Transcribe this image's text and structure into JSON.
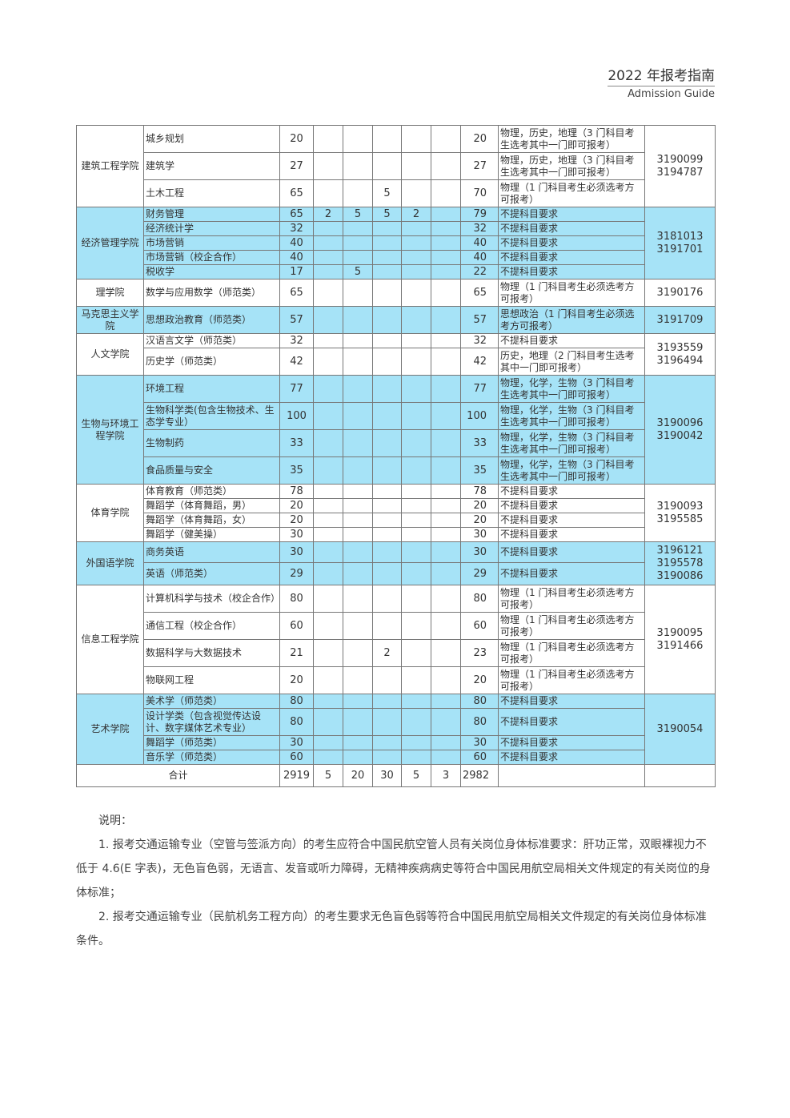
{
  "header": {
    "title": "2022 年报考指南",
    "subtitle": "Admission Guide"
  },
  "colors": {
    "shade": "#a6e3f7",
    "border": "#777777"
  },
  "groups": [
    {
      "college": "建筑工程学院",
      "phone": [
        "3190099",
        "3194787"
      ],
      "shaded": false,
      "rows": [
        {
          "major": "城乡规划",
          "nums": [
            "20",
            "",
            "",
            "",
            "",
            ""
          ],
          "total": "20",
          "req": "物理，历史，地理（3 门科目考生选考其中一门即可报考）"
        },
        {
          "major": "建筑学",
          "nums": [
            "27",
            "",
            "",
            "",
            "",
            ""
          ],
          "total": "27",
          "req": "物理，历史，地理（3 门科目考生选考其中一门即可报考）"
        },
        {
          "major": "土木工程",
          "nums": [
            "65",
            "",
            "",
            "5",
            "",
            ""
          ],
          "total": "70",
          "req": "物理（1 门科目考生必须选考方可报考）"
        }
      ]
    },
    {
      "college": "经济管理学院",
      "phone": [
        "3181013",
        "3191701"
      ],
      "shaded": true,
      "rows": [
        {
          "major": "财务管理",
          "nums": [
            "65",
            "2",
            "5",
            "5",
            "2",
            ""
          ],
          "total": "79",
          "req": "不提科目要求"
        },
        {
          "major": "经济统计学",
          "nums": [
            "32",
            "",
            "",
            "",
            "",
            ""
          ],
          "total": "32",
          "req": "不提科目要求"
        },
        {
          "major": "市场营销",
          "nums": [
            "40",
            "",
            "",
            "",
            "",
            ""
          ],
          "total": "40",
          "req": "不提科目要求"
        },
        {
          "major": "市场营销（校企合作）",
          "nums": [
            "40",
            "",
            "",
            "",
            "",
            ""
          ],
          "total": "40",
          "req": "不提科目要求"
        },
        {
          "major": "税收学",
          "nums": [
            "17",
            "",
            "5",
            "",
            "",
            ""
          ],
          "total": "22",
          "req": "不提科目要求"
        }
      ]
    },
    {
      "college": "理学院",
      "phone": [
        "3190176"
      ],
      "shaded": false,
      "rows": [
        {
          "major": "数学与应用数学（师范类）",
          "nums": [
            "65",
            "",
            "",
            "",
            "",
            ""
          ],
          "total": "65",
          "req": "物理（1 门科目考生必须选考方可报考）"
        }
      ]
    },
    {
      "college": "马克思主义学院",
      "phone": [
        "3191709"
      ],
      "shaded": true,
      "rows": [
        {
          "major": "思想政治教育（师范类）",
          "nums": [
            "57",
            "",
            "",
            "",
            "",
            ""
          ],
          "total": "57",
          "req": "思想政治（1 门科目考生必须选考方可报考）"
        }
      ]
    },
    {
      "college": "人文学院",
      "phone": [
        "3193559",
        "3196494"
      ],
      "shaded": false,
      "rows": [
        {
          "major": "汉语言文学（师范类）",
          "nums": [
            "32",
            "",
            "",
            "",
            "",
            ""
          ],
          "total": "32",
          "req": "不提科目要求"
        },
        {
          "major": "历史学（师范类）",
          "nums": [
            "42",
            "",
            "",
            "",
            "",
            ""
          ],
          "total": "42",
          "req": "历史，地理（2 门科目考生选考其中一门即可报考）"
        }
      ]
    },
    {
      "college": "生物与环境工程学院",
      "phone": [
        "3190096",
        "3190042"
      ],
      "shaded": true,
      "rows": [
        {
          "major": "环境工程",
          "nums": [
            "77",
            "",
            "",
            "",
            "",
            ""
          ],
          "total": "77",
          "req": "物理，化学，生物（3 门科目考生选考其中一门即可报考）"
        },
        {
          "major": "生物科学类(包含生物技术、生态学专业）",
          "nums": [
            "100",
            "",
            "",
            "",
            "",
            ""
          ],
          "total": "100",
          "req": "物理，化学，生物（3 门科目考生选考其中一门即可报考）"
        },
        {
          "major": "生物制药",
          "nums": [
            "33",
            "",
            "",
            "",
            "",
            ""
          ],
          "total": "33",
          "req": "物理，化学，生物（3 门科目考生选考其中一门即可报考）"
        },
        {
          "major": "食品质量与安全",
          "nums": [
            "35",
            "",
            "",
            "",
            "",
            ""
          ],
          "total": "35",
          "req": "物理，化学，生物（3 门科目考生选考其中一门即可报考）"
        }
      ]
    },
    {
      "college": "体育学院",
      "phone": [
        "3190093",
        "3195585"
      ],
      "shaded": false,
      "rows": [
        {
          "major": "体育教育（师范类）",
          "nums": [
            "78",
            "",
            "",
            "",
            "",
            ""
          ],
          "total": "78",
          "req": "不提科目要求"
        },
        {
          "major": "舞蹈学（体育舞蹈，男）",
          "nums": [
            "20",
            "",
            "",
            "",
            "",
            ""
          ],
          "total": "20",
          "req": "不提科目要求"
        },
        {
          "major": "舞蹈学（体育舞蹈，女）",
          "nums": [
            "20",
            "",
            "",
            "",
            "",
            ""
          ],
          "total": "20",
          "req": "不提科目要求"
        },
        {
          "major": "舞蹈学（健美操）",
          "nums": [
            "30",
            "",
            "",
            "",
            "",
            ""
          ],
          "total": "30",
          "req": "不提科目要求"
        }
      ]
    },
    {
      "college": "外国语学院",
      "phone": [
        "3196121",
        "3195578",
        "3190086"
      ],
      "shaded": true,
      "rows": [
        {
          "major": "商务英语",
          "nums": [
            "30",
            "",
            "",
            "",
            "",
            ""
          ],
          "total": "30",
          "req": "不提科目要求"
        },
        {
          "major": "英语（师范类）",
          "nums": [
            "29",
            "",
            "",
            "",
            "",
            ""
          ],
          "total": "29",
          "req": "不提科目要求"
        }
      ]
    },
    {
      "college": "信息工程学院",
      "phone": [
        "3190095",
        "3191466"
      ],
      "shaded": false,
      "rows": [
        {
          "major": "计算机科学与技术（校企合作）",
          "nums": [
            "80",
            "",
            "",
            "",
            "",
            ""
          ],
          "total": "80",
          "req": "物理（1 门科目考生必须选考方可报考）"
        },
        {
          "major": "通信工程（校企合作）",
          "nums": [
            "60",
            "",
            "",
            "",
            "",
            ""
          ],
          "total": "60",
          "req": "物理（1 门科目考生必须选考方可报考）"
        },
        {
          "major": "数据科学与大数据技术",
          "nums": [
            "21",
            "",
            "",
            "2",
            "",
            ""
          ],
          "total": "23",
          "req": "物理（1 门科目考生必须选考方可报考）"
        },
        {
          "major": "物联网工程",
          "nums": [
            "20",
            "",
            "",
            "",
            "",
            ""
          ],
          "total": "20",
          "req": "物理（1 门科目考生必须选考方可报考）"
        }
      ]
    },
    {
      "college": "艺术学院",
      "phone": [
        "3190054"
      ],
      "shaded": true,
      "rows": [
        {
          "major": "美术学（师范类）",
          "nums": [
            "80",
            "",
            "",
            "",
            "",
            ""
          ],
          "total": "80",
          "req": "不提科目要求"
        },
        {
          "major": "设计学类（包含视觉传达设计、数字媒体艺术专业）",
          "nums": [
            "80",
            "",
            "",
            "",
            "",
            ""
          ],
          "total": "80",
          "req": "不提科目要求"
        },
        {
          "major": "舞蹈学（师范类）",
          "nums": [
            "30",
            "",
            "",
            "",
            "",
            ""
          ],
          "total": "30",
          "req": "不提科目要求"
        },
        {
          "major": "音乐学（师范类）",
          "nums": [
            "60",
            "",
            "",
            "",
            "",
            ""
          ],
          "total": "60",
          "req": "不提科目要求"
        }
      ]
    }
  ],
  "total_row": {
    "label": "合计",
    "nums": [
      "2919",
      "5",
      "20",
      "30",
      "5",
      "3"
    ],
    "total": "2982"
  },
  "notes": {
    "heading": "说明：",
    "items": [
      "1. 报考交通运输专业（空管与签派方向）的考生应符合中国民航空管人员有关岗位身体标准要求：肝功正常，双眼裸视力不低于 4.6(E 字表)，无色盲色弱，无语言、发音或听力障碍，无精神疾病病史等符合中国民用航空局相关文件规定的有关岗位的身体标准；",
      "2. 报考交通运输专业（民航机务工程方向）的考生要求无色盲色弱等符合中国民用航空局相关文件规定的有关岗位身体标准条件。"
    ]
  }
}
